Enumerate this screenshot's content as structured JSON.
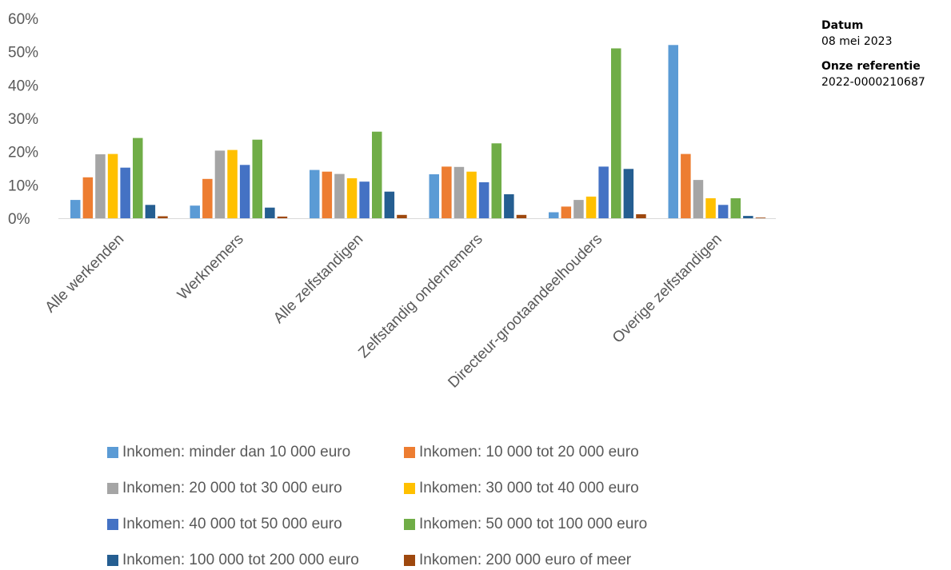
{
  "meta": {
    "datum_label": "Datum",
    "datum_value": "08 mei 2023",
    "ref_label": "Onze referentie",
    "ref_value": "2022-0000210687"
  },
  "chart_data": {
    "type": "bar",
    "title": "",
    "xlabel": "",
    "ylabel": "",
    "ylim": [
      0,
      60
    ],
    "yticks": [
      "0%",
      "10%",
      "20%",
      "30%",
      "40%",
      "50%",
      "60%"
    ],
    "grid": false,
    "legend_position": "bottom",
    "categories": [
      "Alle werkenden",
      "Werknemers",
      "Alle zelfstandigen",
      "Zelfstandig ondernemers",
      "Directeur-grootaandeelhouders",
      "Overige zelfstandigen"
    ],
    "series": [
      {
        "name": "Inkomen: minder dan 10 000 euro",
        "color": "#5B9BD5",
        "values": [
          5.5,
          3.8,
          14.5,
          13.2,
          1.8,
          52
        ]
      },
      {
        "name": "Inkomen: 10 000 tot 20 000 euro",
        "color": "#ED7D31",
        "values": [
          12.3,
          11.8,
          14,
          15.5,
          3.5,
          19.3
        ]
      },
      {
        "name": "Inkomen: 20 000 tot 30 000 euro",
        "color": "#A5A5A5",
        "values": [
          19.2,
          20.3,
          13.3,
          15.4,
          5.5,
          11.5
        ]
      },
      {
        "name": "Inkomen: 30 000 tot 40 000 euro",
        "color": "#FFC000",
        "values": [
          19.3,
          20.5,
          12,
          14,
          6.5,
          6
        ]
      },
      {
        "name": "Inkomen: 40 000 tot 50 000 euro",
        "color": "#4472C4",
        "values": [
          15.2,
          16,
          11,
          10.8,
          15.5,
          4
        ]
      },
      {
        "name": "Inkomen: 50 000 tot 100 000 euro",
        "color": "#70AD47",
        "values": [
          24.1,
          23.6,
          26,
          22.5,
          51,
          6
        ]
      },
      {
        "name": "Inkomen: 100 000 tot 200 000 euro",
        "color": "#255E91",
        "values": [
          4,
          3.2,
          8,
          7.2,
          14.8,
          0.7
        ]
      },
      {
        "name": "Inkomen: 200 000 euro of meer",
        "color": "#9E480E",
        "values": [
          0.6,
          0.5,
          1,
          1,
          1.2,
          0.2
        ]
      }
    ]
  }
}
